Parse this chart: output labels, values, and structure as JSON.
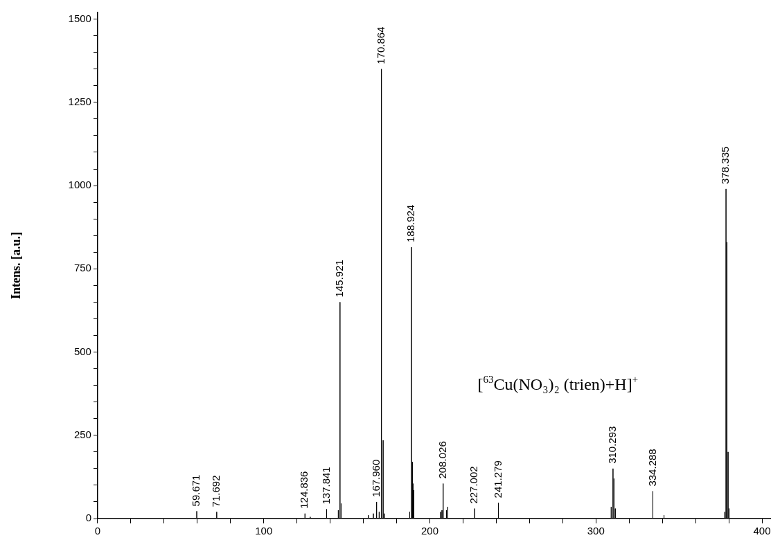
{
  "chart_data": {
    "type": "line",
    "ylabel": "Intens. [a.u.]",
    "color": "#000000",
    "marker": "none",
    "line_style": "solid",
    "grid": false,
    "legend": false,
    "x": [
      59.671,
      59.671,
      59.671,
      71.692,
      71.692,
      71.692,
      124.836,
      124.836,
      124.836,
      128,
      128,
      128,
      137.841,
      137.841,
      137.841,
      144.9,
      144.9,
      144.9,
      145.921,
      145.921,
      145.921,
      146.6,
      146.6,
      146.6,
      163,
      163,
      163,
      166,
      166,
      166,
      167.96,
      167.96,
      167.96,
      169.5,
      169.5,
      169.5,
      170.864,
      170.864,
      170.864,
      171.9,
      171.9,
      171.9,
      172.6,
      172.6,
      172.6,
      187.9,
      187.9,
      187.9,
      188.924,
      188.924,
      188.924,
      189.5,
      189.5,
      189.5,
      189.9,
      189.9,
      189.9,
      190.4,
      190.4,
      190.4,
      206.5,
      206.5,
      206.5,
      207.3,
      207.3,
      207.3,
      208.026,
      208.026,
      208.026,
      210,
      210,
      210,
      210.8,
      210.8,
      210.8,
      227.002,
      227.002,
      227.002,
      241.279,
      241.279,
      241.279,
      309.2,
      309.2,
      309.2,
      310.293,
      310.293,
      310.293,
      310.9,
      310.9,
      310.9,
      311.7,
      311.7,
      311.7,
      334.288,
      334.288,
      334.288,
      341,
      341,
      341,
      377.6,
      377.6,
      377.6,
      378.335,
      378.335,
      378.335,
      378.9,
      378.9,
      378.9,
      379.6,
      379.6,
      379.6,
      380.2,
      380.2,
      380.2
    ],
    "values": [
      0,
      22,
      0,
      0,
      20,
      0,
      0,
      15,
      0,
      0,
      5,
      0,
      0,
      28,
      0,
      0,
      25,
      0,
      0,
      650,
      0,
      0,
      45,
      0,
      0,
      10,
      0,
      0,
      15,
      0,
      0,
      50,
      0,
      0,
      20,
      0,
      0,
      1350,
      0,
      0,
      235,
      0,
      0,
      15,
      0,
      0,
      20,
      0,
      0,
      815,
      0,
      0,
      170,
      0,
      0,
      105,
      0,
      0,
      85,
      0,
      0,
      20,
      0,
      0,
      25,
      0,
      0,
      105,
      0,
      0,
      25,
      0,
      0,
      35,
      0,
      0,
      30,
      0,
      0,
      47,
      0,
      0,
      35,
      0,
      0,
      150,
      0,
      0,
      120,
      0,
      0,
      30,
      0,
      0,
      82,
      0,
      0,
      10,
      0,
      0,
      20,
      0,
      0,
      990,
      0,
      0,
      830,
      0,
      0,
      200,
      0,
      0,
      30,
      0
    ],
    "xlim": [
      0,
      405
    ],
    "xticks": [
      0,
      {
        "value": 20,
        "label": null
      },
      {
        "value": 40,
        "label": null
      },
      {
        "value": 60,
        "label": null
      },
      {
        "value": 80,
        "label": null
      },
      100,
      {
        "value": 120,
        "label": null
      },
      {
        "value": 140,
        "label": null
      },
      {
        "value": 160,
        "label": null
      },
      {
        "value": 180,
        "label": null
      },
      200,
      {
        "value": 220,
        "label": null
      },
      {
        "value": 240,
        "label": null
      },
      {
        "value": 260,
        "label": null
      },
      {
        "value": 280,
        "label": null
      },
      300,
      {
        "value": 320,
        "label": null
      },
      {
        "value": 340,
        "label": null
      },
      {
        "value": 360,
        "label": null
      },
      {
        "value": 380,
        "label": null
      },
      400
    ],
    "ylim": [
      0,
      1520
    ],
    "yticks": [
      0,
      {
        "value": 50,
        "label": null
      },
      {
        "value": 100,
        "label": null
      },
      {
        "value": 150,
        "label": null
      },
      {
        "value": 200,
        "label": null
      },
      250,
      {
        "value": 300,
        "label": null
      },
      {
        "value": 350,
        "label": null
      },
      {
        "value": 400,
        "label": null
      },
      {
        "value": 450,
        "label": null
      },
      500,
      {
        "value": 550,
        "label": null
      },
      {
        "value": 600,
        "label": null
      },
      {
        "value": 650,
        "label": null
      },
      {
        "value": 700,
        "label": null
      },
      750,
      {
        "value": 800,
        "label": null
      },
      {
        "value": 850,
        "label": null
      },
      {
        "value": 900,
        "label": null
      },
      {
        "value": 950,
        "label": null
      },
      1000,
      {
        "value": 1050,
        "label": null
      },
      {
        "value": 1100,
        "label": null
      },
      {
        "value": 1150,
        "label": null
      },
      {
        "value": 1200,
        "label": null
      },
      1250,
      {
        "value": 1300,
        "label": null
      },
      {
        "value": 1350,
        "label": null
      },
      {
        "value": 1400,
        "label": null
      },
      {
        "value": 1450,
        "label": null
      },
      1500
    ],
    "annotations": [
      {
        "text": "59.671",
        "x": 59.671,
        "y": 22
      },
      {
        "text": "71.692",
        "x": 71.692,
        "y": 20
      },
      {
        "text": "124.836",
        "x": 124.836,
        "y": 15
      },
      {
        "text": "137.841",
        "x": 137.841,
        "y": 28
      },
      {
        "text": "145.921",
        "x": 145.921,
        "y": 650
      },
      {
        "text": "167.960",
        "x": 167.96,
        "y": 50
      },
      {
        "text": "170.864",
        "x": 170.864,
        "y": 1350
      },
      {
        "text": "188.924",
        "x": 188.924,
        "y": 815
      },
      {
        "text": "208.026",
        "x": 208.026,
        "y": 105
      },
      {
        "text": "227.002",
        "x": 227.002,
        "y": 30
      },
      {
        "text": "241.279",
        "x": 241.279,
        "y": 47
      },
      {
        "text": "310.293",
        "x": 310.293,
        "y": 150
      },
      {
        "text": "334.288",
        "x": 334.288,
        "y": 82
      },
      {
        "text": "378.335",
        "x": 378.335,
        "y": 990
      },
      "[$^{63}$Cu(NO₃)₂ (trien)+H]$^{+}$"
    ]
  }
}
